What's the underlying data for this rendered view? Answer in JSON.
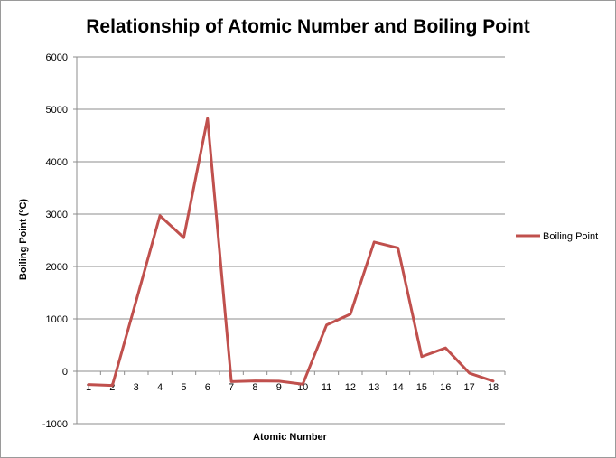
{
  "chart_data": {
    "type": "line",
    "title": "Relationship of Atomic Number and Boiling Point",
    "xlabel": "Atomic Number",
    "ylabel": "Boiling Point (ºC)",
    "ylim": [
      -1000,
      6000
    ],
    "yticks": [
      -1000,
      0,
      1000,
      2000,
      3000,
      4000,
      5000,
      6000
    ],
    "categories": [
      "1",
      "2",
      "3",
      "4",
      "5",
      "6",
      "7",
      "8",
      "9",
      "10",
      "11",
      "12",
      "13",
      "14",
      "15",
      "16",
      "17",
      "18"
    ],
    "grid": true,
    "legend_position": "right",
    "series": [
      {
        "name": "Boiling Point",
        "color": "#c0504d",
        "values": [
          -253,
          -269,
          1342,
          2970,
          2550,
          4827,
          -196,
          -183,
          -188,
          -246,
          883,
          1090,
          2467,
          2355,
          280,
          445,
          -35,
          -186
        ]
      }
    ]
  }
}
